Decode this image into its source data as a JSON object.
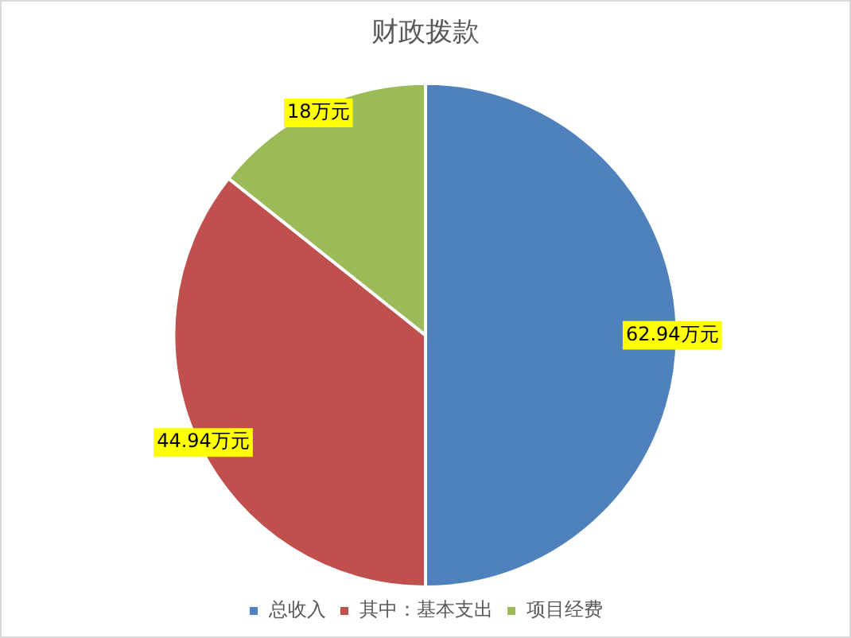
{
  "chart_data": {
    "type": "pie",
    "title": "财政拨款",
    "categories": [
      "总收入",
      "其中：基本支出",
      "项目经费"
    ],
    "values": [
      62.94,
      44.94,
      18
    ],
    "colors": [
      "#4f81bd",
      "#c0504d",
      "#9bbb59"
    ],
    "value_labels": [
      "62.94万元",
      "44.94万元",
      "18万元"
    ],
    "legend": "bottom"
  }
}
